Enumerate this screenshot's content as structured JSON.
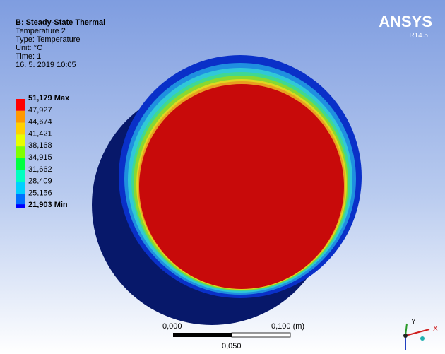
{
  "header": {
    "title": "B: Steady-State Thermal",
    "lines": [
      "Temperature 2",
      "Type: Temperature",
      "Unit: °C",
      "Time: 1",
      "16. 5. 2019 10:05"
    ]
  },
  "legend": {
    "labels": [
      "51,179 Max",
      "47,927",
      "44,674",
      "41,421",
      "38,168",
      "34,915",
      "31,662",
      "28,409",
      "25,156",
      "21,903 Min"
    ]
  },
  "logo": {
    "name": "ANSYS",
    "version": "R14.5"
  },
  "scale_bar": {
    "start": "0,000",
    "end": "0,100 (m)",
    "middle": "0,050"
  },
  "triad": {
    "y": "Y",
    "x": "X"
  }
}
